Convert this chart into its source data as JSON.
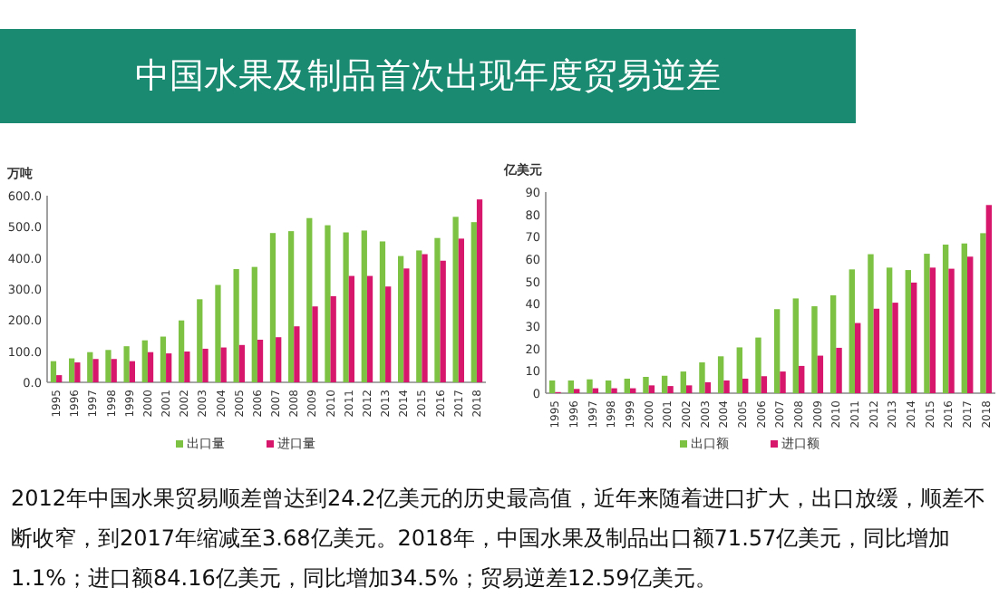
{
  "chart_data": [
    {
      "type": "bar",
      "title": "中国水果及制品首次出现年度贸易逆差",
      "ylabel": "万吨",
      "annotations": [
        "2012年中国水果贸易顺差曾达到24.2亿美元的历史最高值，近年来随着进口扩大，出口放缓，顺差不断收窄，到2017年缩减至3.68亿美元。2018年，中国水果及制品出口额71.57亿美元，同比增加1.1%；进口额84.16亿美元，同比增加34.5%；贸易逆差12.59亿美元。"
      ],
      "categories": [
        "1995",
        "1996",
        "1997",
        "1998",
        "1999",
        "2000",
        "2001",
        "2002",
        "2003",
        "2004",
        "2005",
        "2006",
        "2007",
        "2008",
        "2009",
        "2010",
        "2011",
        "2012",
        "2013",
        "2014",
        "2015",
        "2016",
        "2017",
        "2018"
      ],
      "series": [
        {
          "name": "出口量",
          "color": "#7dc242",
          "values": [
            68,
            77,
            97,
            104,
            116,
            135,
            147,
            199,
            267,
            313,
            364,
            371,
            480,
            486,
            528,
            505,
            482,
            488,
            453,
            406,
            424,
            464,
            532,
            515
          ]
        },
        {
          "name": "进口量",
          "color": "#d6176b",
          "values": [
            23,
            64,
            75,
            75,
            68,
            97,
            93,
            99,
            108,
            112,
            120,
            137,
            145,
            180,
            244,
            277,
            342,
            342,
            308,
            366,
            412,
            391,
            462,
            588
          ]
        }
      ],
      "ylim": [
        0,
        600
      ],
      "yticks": [
        {
          "value": 0,
          "label": "0.0"
        },
        {
          "value": 100,
          "label": "100.0"
        },
        {
          "value": 200,
          "label": "200.0"
        },
        {
          "value": 300,
          "label": "300.0"
        },
        {
          "value": 400,
          "label": "400.0"
        },
        {
          "value": 500,
          "label": "500.0"
        },
        {
          "value": 600,
          "label": "600.0"
        }
      ],
      "legend": "bottom"
    },
    {
      "type": "bar",
      "ylabel": "亿美元",
      "categories": [
        "1995",
        "1996",
        "1997",
        "1998",
        "1999",
        "2000",
        "2001",
        "2002",
        "2003",
        "2004",
        "2005",
        "2006",
        "2007",
        "2008",
        "2009",
        "2010",
        "2011",
        "2012",
        "2013",
        "2014",
        "2015",
        "2016",
        "2017",
        "2018"
      ],
      "series": [
        {
          "name": "出口额",
          "color": "#7dc242",
          "values": [
            5.7,
            5.7,
            6.2,
            5.7,
            6.5,
            7.3,
            7.8,
            9.7,
            13.8,
            16.5,
            20.5,
            24.9,
            37.6,
            42.4,
            38.9,
            43.8,
            55.4,
            62.2,
            56.2,
            55.1,
            62.4,
            66.5,
            67,
            71.6
          ]
        },
        {
          "name": "进口额",
          "color": "#d6176b",
          "values": [
            0.5,
            1.9,
            2.2,
            2.2,
            2.2,
            3.5,
            3.2,
            3.5,
            4.9,
            5.7,
            6.5,
            7.6,
            9.7,
            12.2,
            16.8,
            20.3,
            31.4,
            37.8,
            40.5,
            49.5,
            56.2,
            55.7,
            61.1,
            84.2
          ]
        }
      ],
      "ylim": [
        0,
        90
      ],
      "yticks": [
        0,
        10,
        20,
        30,
        40,
        50,
        60,
        70,
        80,
        90
      ],
      "legend": "bottom"
    }
  ]
}
